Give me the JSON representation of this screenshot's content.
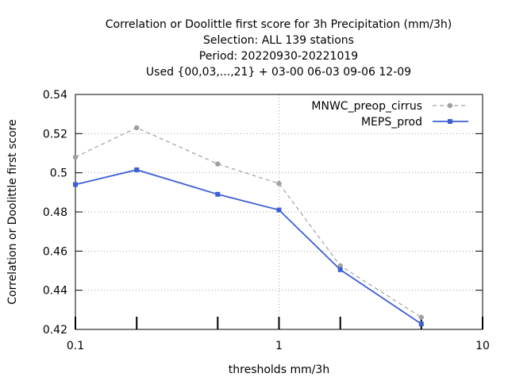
{
  "chart_data": {
    "type": "line",
    "title_lines": [
      "Correlation or Doolittle first score  for 3h Precipitation (mm/3h)",
      "Selection: ALL    139 stations",
      "Period: 20220930-20221019",
      "Used {00,03,...,21} + 03-00 06-03 09-06 12-09"
    ],
    "xlabel": "thresholds mm/3h",
    "ylabel": "Correlation or Doolittle first score",
    "x_scale": "log",
    "xlim": [
      0.1,
      10
    ],
    "ylim": [
      0.42,
      0.54
    ],
    "x_ticks": [
      {
        "value": 0.1,
        "label": "0.1"
      },
      {
        "value": 1,
        "label": "1"
      },
      {
        "value": 10,
        "label": "10"
      }
    ],
    "x_minor_ticks": [
      0.2,
      0.5,
      2,
      5
    ],
    "y_ticks": [
      {
        "value": 0.42,
        "label": "0.42"
      },
      {
        "value": 0.44,
        "label": "0.44"
      },
      {
        "value": 0.46,
        "label": "0.46"
      },
      {
        "value": 0.48,
        "label": "0.48"
      },
      {
        "value": 0.5,
        "label": "0.5"
      },
      {
        "value": 0.52,
        "label": "0.52"
      },
      {
        "value": 0.54,
        "label": "0.54"
      }
    ],
    "grid": true,
    "legend_position": "top-right",
    "series": [
      {
        "name": "MNWC_preop_cirrus",
        "color": "#a0a0a0",
        "dashed": true,
        "x": [
          0.1,
          0.2,
          0.5,
          1,
          2,
          5
        ],
        "y": [
          0.508,
          0.523,
          0.5045,
          0.4945,
          0.4525,
          0.4262
        ]
      },
      {
        "name": "MEPS_prod",
        "color": "#3c5fd6",
        "dashed": false,
        "x": [
          0.1,
          0.2,
          0.5,
          1,
          2,
          5
        ],
        "y": [
          0.494,
          0.5015,
          0.489,
          0.481,
          0.4505,
          0.4228
        ]
      }
    ]
  }
}
